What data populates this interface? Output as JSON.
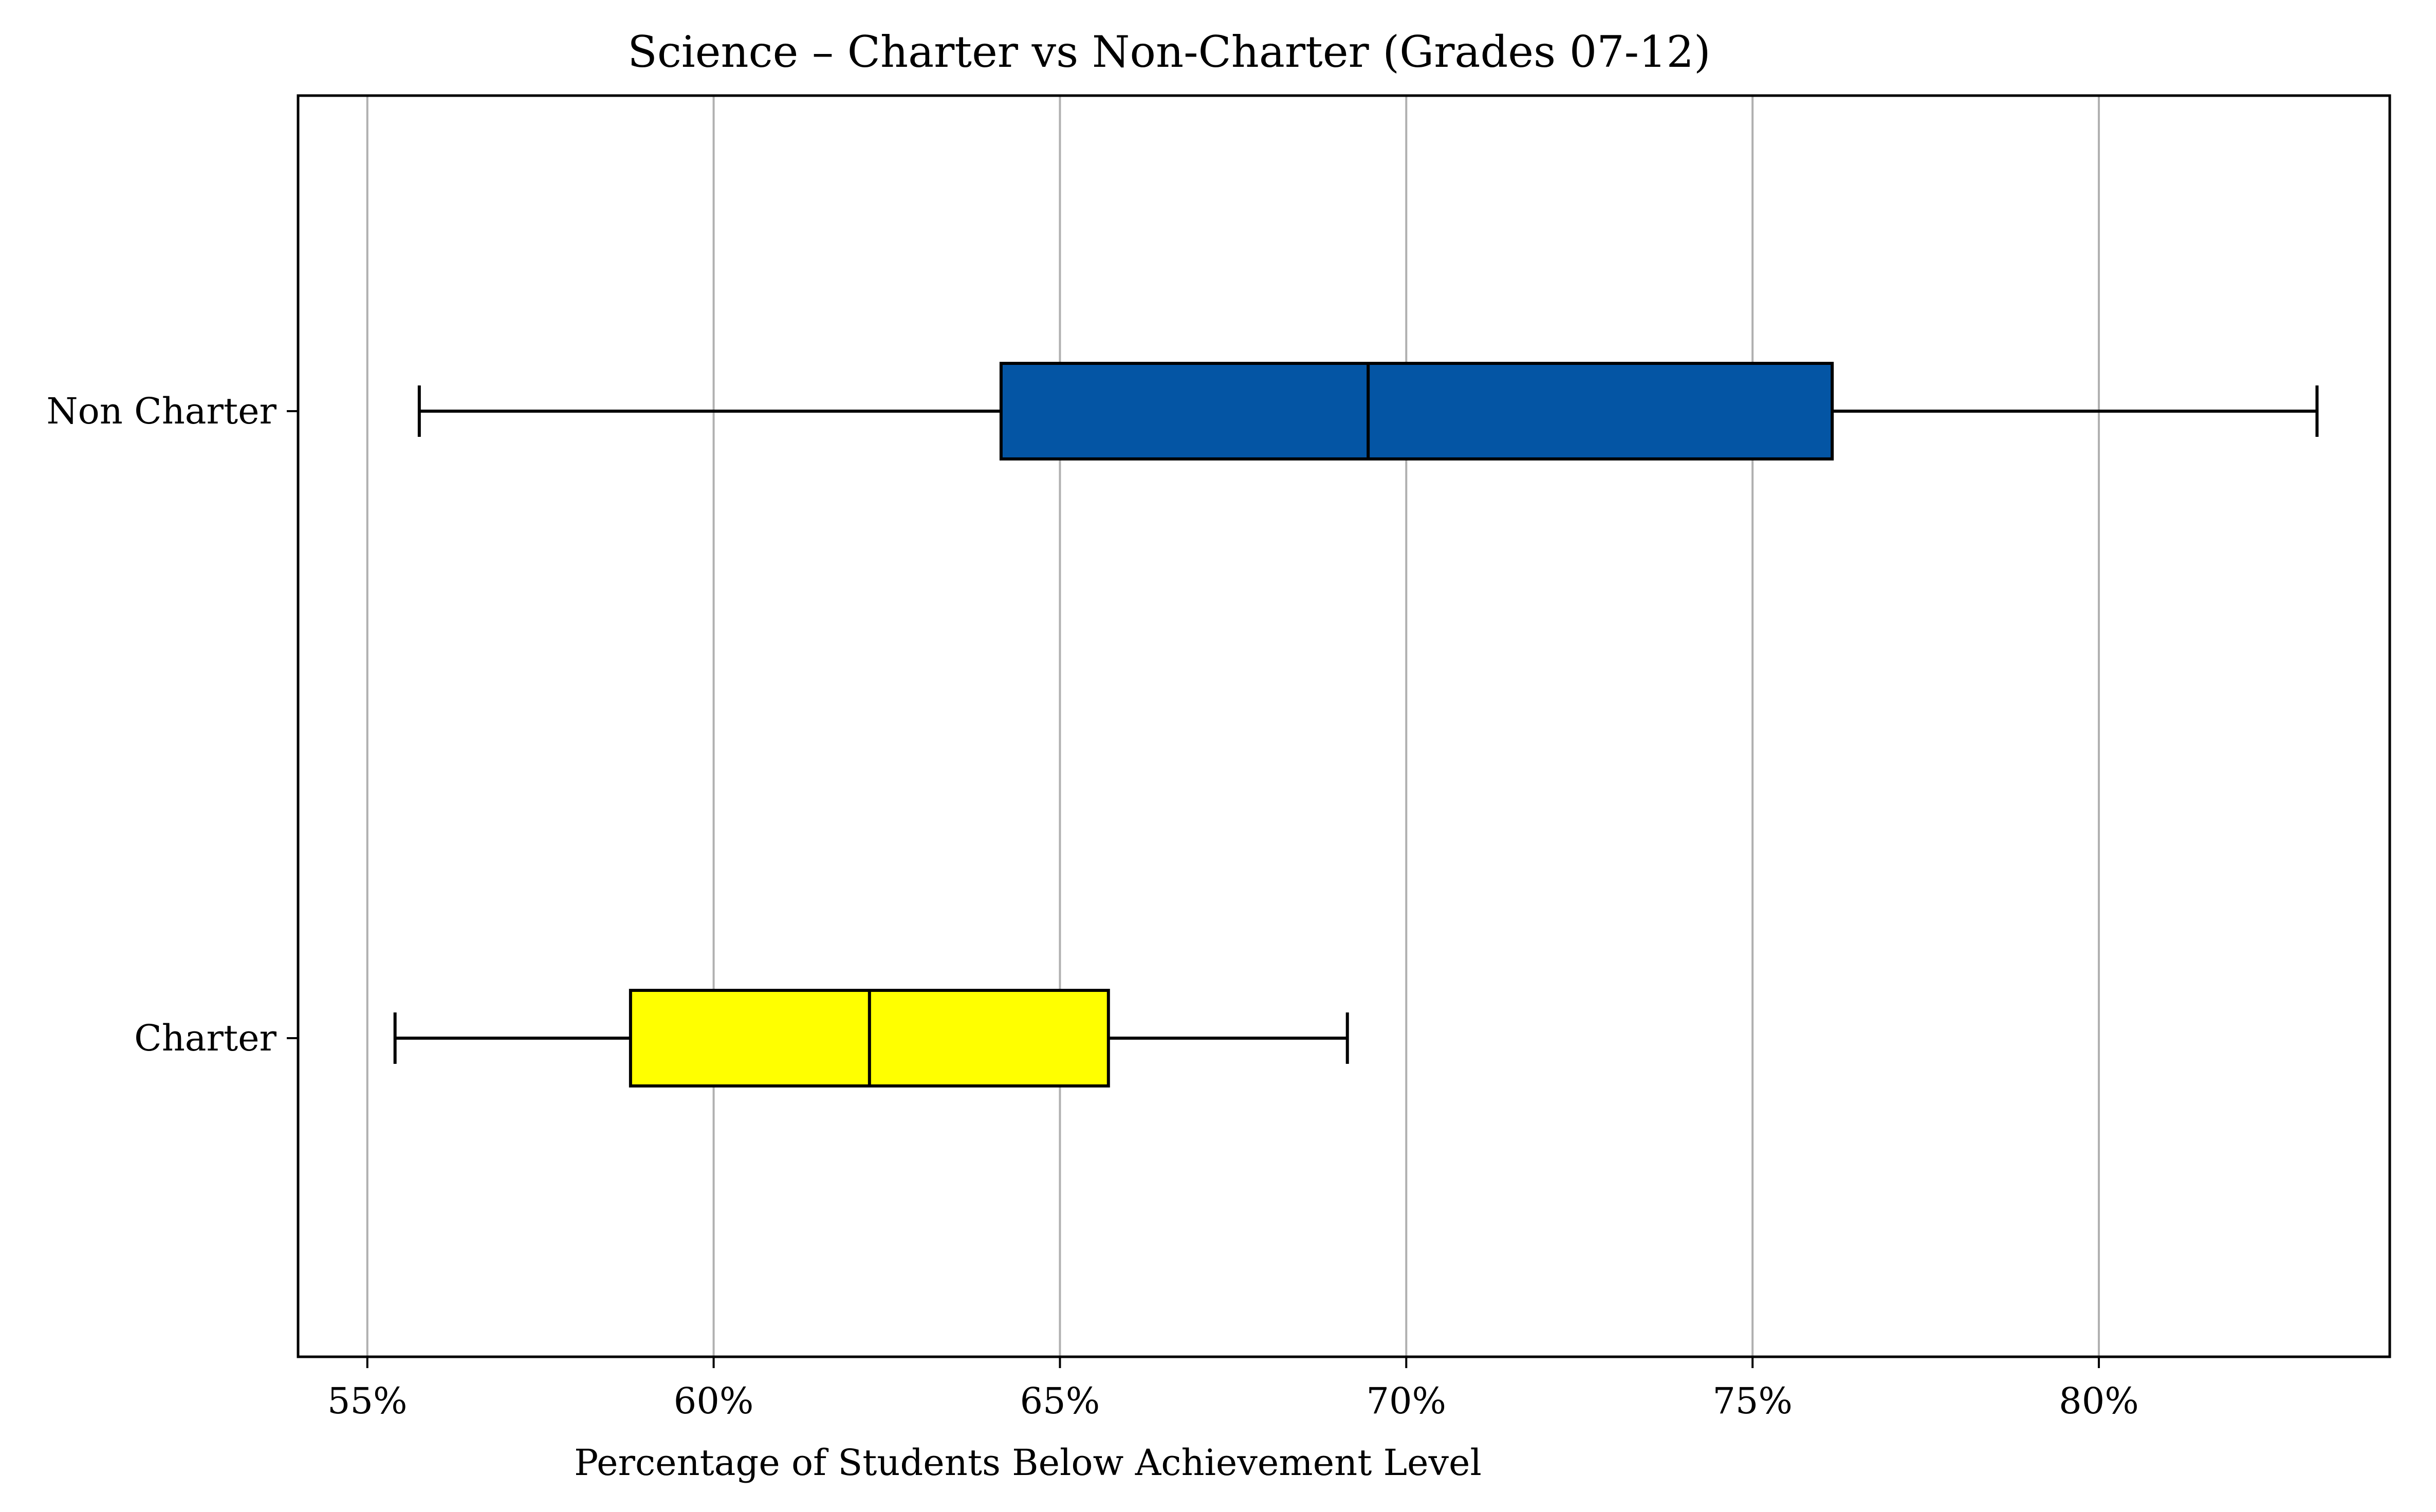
{
  "chart_data": {
    "type": "boxplot",
    "orientation": "horizontal",
    "title": "Science – Charter vs Non-Charter (Grades 07-12)",
    "xlabel": "Percentage of Students Below Achievement Level",
    "ylabel": "",
    "xlim": [
      54.0,
      84.2
    ],
    "xticks": [
      55,
      60,
      65,
      70,
      75,
      80
    ],
    "xtick_labels": [
      "55%",
      "60%",
      "65%",
      "70%",
      "75%",
      "80%"
    ],
    "grid": "vertical",
    "series": [
      {
        "name": "Non Charter",
        "whisker_low": 55.75,
        "q1": 64.15,
        "median": 69.45,
        "q3": 76.15,
        "whisker_high": 83.15,
        "color": "#0455a4"
      },
      {
        "name": "Charter",
        "whisker_low": 55.4,
        "q1": 58.8,
        "median": 62.25,
        "q3": 65.7,
        "whisker_high": 69.15,
        "color": "#ffff00"
      }
    ]
  }
}
